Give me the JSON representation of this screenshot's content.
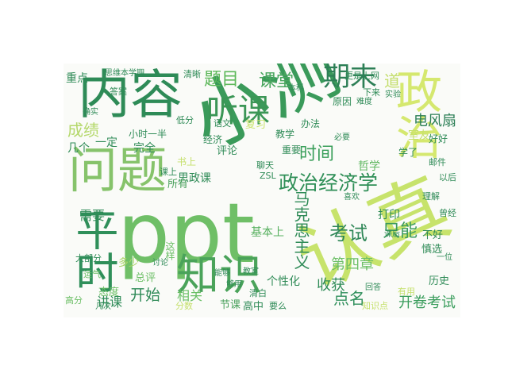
{
  "wordcloud": {
    "words": [
      {
        "text": "ppt",
        "color": "#6fbf67"
      },
      {
        "text": "小测",
        "color": "#3a9a5a"
      },
      {
        "text": "认真",
        "color": "#c7e36b"
      },
      {
        "text": "内容",
        "color": "#2e8b57"
      },
      {
        "text": "问题",
        "color": "#86c36b"
      },
      {
        "text": "政治",
        "color": "#d5e86f"
      },
      {
        "text": "平时",
        "color": "#2f8f5a"
      },
      {
        "text": "知识",
        "color": "#4aa35a"
      },
      {
        "text": "听课",
        "color": "#3b9656"
      },
      {
        "text": "政治经济学",
        "color": "#2f8f57"
      },
      {
        "text": "期末",
        "color": "#2d7f56"
      },
      {
        "text": "题目",
        "color": "#5db85a"
      },
      {
        "text": "课堂",
        "color": "#49a65e"
      },
      {
        "text": "时间",
        "color": "#3a9f5a"
      },
      {
        "text": "成绩",
        "color": "#b4d86a"
      },
      {
        "text": "考试",
        "color": "#2f8757"
      },
      {
        "text": "只能",
        "color": "#3b9a5d"
      },
      {
        "text": "马克思主义",
        "color": "#2f8b57"
      },
      {
        "text": "开始",
        "color": "#2e8a57"
      },
      {
        "text": "相关",
        "color": "#6abf66"
      },
      {
        "text": "讲课",
        "color": "#2e8b57"
      },
      {
        "text": "开卷考试",
        "color": "#3a9d5c"
      },
      {
        "text": "收获",
        "color": "#2e8b57"
      },
      {
        "text": "点名",
        "color": "#2f8f5b"
      },
      {
        "text": "第四章",
        "color": "#6cbf66"
      },
      {
        "text": "基本上",
        "color": "#57b05f"
      },
      {
        "text": "需要",
        "color": "#2f8b57"
      },
      {
        "text": "电风扇",
        "color": "#2c7f56"
      },
      {
        "text": "道",
        "color": "#c4de6d"
      },
      {
        "text": "打印",
        "color": "#2f8b57"
      },
      {
        "text": "不好",
        "color": "#2f8b57"
      },
      {
        "text": "慎选",
        "color": "#2f8b57"
      },
      {
        "text": "历史",
        "color": "#2f8b57"
      },
      {
        "text": "完全",
        "color": "#2f8b57"
      },
      {
        "text": "一定",
        "color": "#2f8b57"
      },
      {
        "text": "几个",
        "color": "#2f8b57"
      },
      {
        "text": "重点",
        "color": "#2f8b57"
      },
      {
        "text": "思政课",
        "color": "#2f8b57"
      },
      {
        "text": "哲学",
        "color": "#5fb760"
      },
      {
        "text": "所有",
        "color": "#4aa15c"
      },
      {
        "text": "总评",
        "color": "#6cbf66"
      },
      {
        "text": "态度",
        "color": "#6cbf66"
      },
      {
        "text": "多少",
        "color": "#a9d468"
      },
      {
        "text": "个性化",
        "color": "#2f8b57"
      },
      {
        "text": "高中",
        "color": "#2f8b57"
      },
      {
        "text": "节课",
        "color": "#4aa15c"
      },
      {
        "text": "小时一半",
        "color": "#2f8b57"
      },
      {
        "text": "复习",
        "color": "#cbe46d"
      },
      {
        "text": "经济",
        "color": "#2f8b57"
      },
      {
        "text": "评论",
        "color": "#2f8b57"
      },
      {
        "text": "教学",
        "color": "#2f8b57"
      },
      {
        "text": "聊天",
        "color": "#2f8b57"
      },
      {
        "text": "ZSL",
        "color": "#2f8b57"
      },
      {
        "text": "原因",
        "color": "#2f8b57"
      },
      {
        "text": "好好",
        "color": "#2f8b57"
      },
      {
        "text": "学了",
        "color": "#2f8b57"
      },
      {
        "text": "曾经",
        "color": "#2f8b57"
      },
      {
        "text": "理解",
        "color": "#2f8b57"
      },
      {
        "text": "室友",
        "color": "#c5e06c"
      },
      {
        "text": "办法",
        "color": "#2f8b57"
      },
      {
        "text": "下来",
        "color": "#2f8b57"
      },
      {
        "text": "思维本学期",
        "color": "#2f8b57"
      },
      {
        "text": "答案",
        "color": "#2f8b57"
      },
      {
        "text": "确实",
        "color": "#2f8b57"
      },
      {
        "text": "课上",
        "color": "#2f8b57"
      },
      {
        "text": "书上",
        "color": "#c5e06c"
      },
      {
        "text": "语文",
        "color": "#2f8b57"
      },
      {
        "text": "重要",
        "color": "#2f8b57"
      },
      {
        "text": "低分",
        "color": "#2f8b57"
      },
      {
        "text": "必要",
        "color": "#2f8b57"
      },
      {
        "text": "一位",
        "color": "#2f8b57"
      },
      {
        "text": "邮件",
        "color": "#2f8b57"
      },
      {
        "text": "有用",
        "color": "#c5e06c"
      },
      {
        "text": "知识点",
        "color": "#c5e06c"
      },
      {
        "text": "分数",
        "color": "#c5e06c"
      },
      {
        "text": "清白",
        "color": "#2f8b57"
      },
      {
        "text": "本科",
        "color": "#2f8b57"
      },
      {
        "text": "讨论",
        "color": "#2f8b57"
      },
      {
        "text": "几次",
        "color": "#2f8b57"
      },
      {
        "text": "高分",
        "color": "#6cbf66"
      },
      {
        "text": "大部分",
        "color": "#2f8b57"
      },
      {
        "text": "运气",
        "color": "#6cbf66"
      },
      {
        "text": "要么",
        "color": "#2f8b57"
      },
      {
        "text": "回答",
        "color": "#2f8b57"
      },
      {
        "text": "能够",
        "color": "#2f8b57"
      },
      {
        "text": "教室",
        "color": "#2f8b57"
      },
      {
        "text": "清晰",
        "color": "#2f8b57"
      },
      {
        "text": "更是上网",
        "color": "#2f8b57"
      },
      {
        "text": "以后",
        "color": "#2f8b57"
      },
      {
        "text": "实验",
        "color": "#2f8b57"
      },
      {
        "text": "课后",
        "color": "#2f8b57"
      },
      {
        "text": "喜欢",
        "color": "#2f8b57"
      },
      {
        "text": "难度",
        "color": "#2f8b57"
      },
      {
        "text": "够用",
        "color": "#2f8b57"
      },
      {
        "text": "这样",
        "color": "#6cbf66"
      }
    ]
  }
}
